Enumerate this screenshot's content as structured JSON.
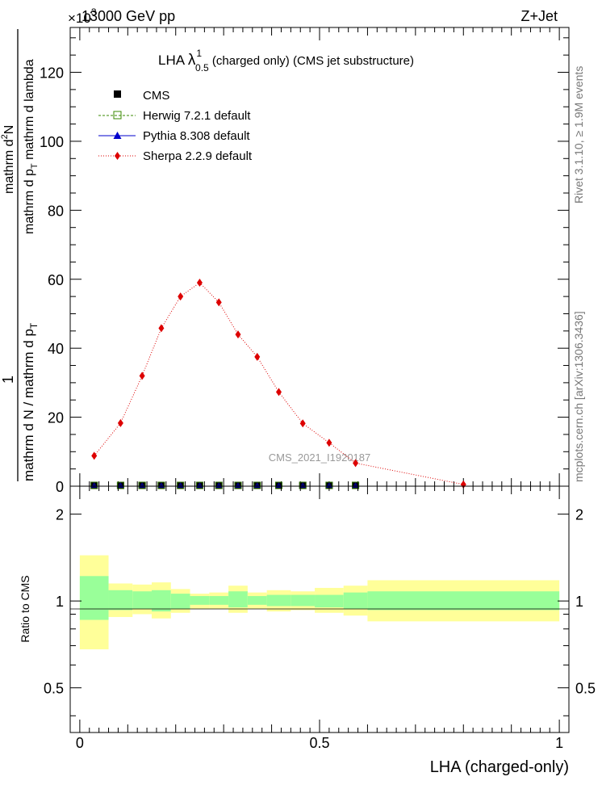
{
  "header": {
    "left": "13000 GeV pp",
    "right": "Z+Jet",
    "exponent_base": "×10",
    "exponent_power": "3"
  },
  "side_labels": {
    "rivet": "Rivet 3.1.10, ≥ 1.9M events",
    "mcplots": "mcplots.cern.ch [arXiv:1306.3436]"
  },
  "main_title": {
    "prefix": "LHA ",
    "lambda": "λ",
    "superscript": "1",
    "subscript": "0.5",
    "suffix": " (charged only) (CMS jet substructure)"
  },
  "watermark": "CMS_2021_I1920187",
  "y_axis_label": {
    "numerator": "1",
    "denominator_main": "mathrm d N / mathrm d p",
    "denominator_sub": "T",
    "frac_numerator_pre": "mathrm d",
    "frac_numerator_sup": "2",
    "frac_numerator_post": "N",
    "frac_denominator_pre": "mathrm d p",
    "frac_denominator_sub": "T",
    "frac_denominator_post": " mathrm d lambda"
  },
  "ratio_panel": {
    "ylabel": "Ratio to CMS",
    "y_ticks": [
      "0.5",
      "1",
      "2"
    ]
  },
  "x_axis": {
    "label": "LHA (charged-only)",
    "ticks": [
      "0",
      "0.5",
      "1"
    ]
  },
  "colors": {
    "cms": "#000000",
    "herwig": "#3a8a00",
    "pythia": "#0000cc",
    "sherpa": "#dd0000",
    "band_inner": "#99ff99",
    "band_outer": "#ffff99"
  },
  "chart_data": {
    "type": "line",
    "xlabel": "LHA (charged-only)",
    "ylabel": "1 / mathrm d N / mathrm d p_T  mathrm d^2 N / mathrm d p_T mathrm d lambda",
    "xlim": [
      -0.02,
      1.02
    ],
    "ylim": [
      0,
      133
    ],
    "y_scale_note": "×10^3",
    "y_ticks": [
      0,
      20,
      40,
      60,
      80,
      100,
      120
    ],
    "legend_position": "top-left",
    "series": [
      {
        "name": "CMS",
        "marker": "square",
        "x": [
          0.03,
          0.085,
          0.13,
          0.17,
          0.21,
          0.25,
          0.29,
          0.33,
          0.37,
          0.415,
          0.465,
          0.52,
          0.575
        ],
        "values": [
          0,
          0,
          0,
          0,
          0,
          0,
          0,
          0,
          0,
          0,
          0,
          0,
          0
        ]
      },
      {
        "name": "Herwig 7.2.1 default",
        "marker": "open-square",
        "x": [
          0.03,
          0.085,
          0.13,
          0.17,
          0.21,
          0.25,
          0.29,
          0.33,
          0.37,
          0.415,
          0.465,
          0.52,
          0.575
        ],
        "values": [
          0,
          0,
          0,
          0,
          0,
          0,
          0,
          0,
          0,
          0,
          0,
          0,
          0
        ]
      },
      {
        "name": "Pythia 8.308 default",
        "marker": "triangle",
        "x": [
          0.03,
          0.085,
          0.13,
          0.17,
          0.21,
          0.25,
          0.29,
          0.33,
          0.37,
          0.415,
          0.465,
          0.52,
          0.575
        ],
        "values": [
          0,
          0,
          0,
          0,
          0,
          0,
          0,
          0,
          0,
          0,
          0,
          0,
          0
        ]
      },
      {
        "name": "Sherpa 2.2.9 default",
        "marker": "diamond",
        "x": [
          0.03,
          0.085,
          0.13,
          0.17,
          0.21,
          0.25,
          0.29,
          0.33,
          0.37,
          0.415,
          0.465,
          0.52,
          0.575,
          0.8
        ],
        "values": [
          8.8,
          18.3,
          32.0,
          45.8,
          55.0,
          59.0,
          53.3,
          44.0,
          37.5,
          27.3,
          18.2,
          12.6,
          6.7,
          0.5
        ]
      }
    ],
    "ratio": {
      "ylabel": "Ratio to CMS",
      "ylim": [
        0.35,
        2.5
      ],
      "y_scale": "log",
      "bin_edges": [
        0,
        0.06,
        0.11,
        0.15,
        0.19,
        0.23,
        0.27,
        0.31,
        0.35,
        0.39,
        0.44,
        0.49,
        0.55,
        0.6,
        1.0
      ],
      "inner_band": [
        [
          0.86,
          1.22
        ],
        [
          0.93,
          1.09
        ],
        [
          0.94,
          1.08
        ],
        [
          0.92,
          1.09
        ],
        [
          0.94,
          1.06
        ],
        [
          0.97,
          1.04
        ],
        [
          0.97,
          1.04
        ],
        [
          0.95,
          1.08
        ],
        [
          0.97,
          1.04
        ],
        [
          0.96,
          1.05
        ],
        [
          0.96,
          1.05
        ],
        [
          0.95,
          1.05
        ],
        [
          0.94,
          1.07
        ],
        [
          0.93,
          1.08
        ]
      ],
      "outer_band": [
        [
          0.68,
          1.44
        ],
        [
          0.88,
          1.15
        ],
        [
          0.9,
          1.14
        ],
        [
          0.87,
          1.16
        ],
        [
          0.91,
          1.1
        ],
        [
          0.94,
          1.06
        ],
        [
          0.94,
          1.07
        ],
        [
          0.91,
          1.13
        ],
        [
          0.94,
          1.07
        ],
        [
          0.92,
          1.09
        ],
        [
          0.93,
          1.08
        ],
        [
          0.91,
          1.11
        ],
        [
          0.89,
          1.13
        ],
        [
          0.85,
          1.18
        ]
      ]
    }
  }
}
